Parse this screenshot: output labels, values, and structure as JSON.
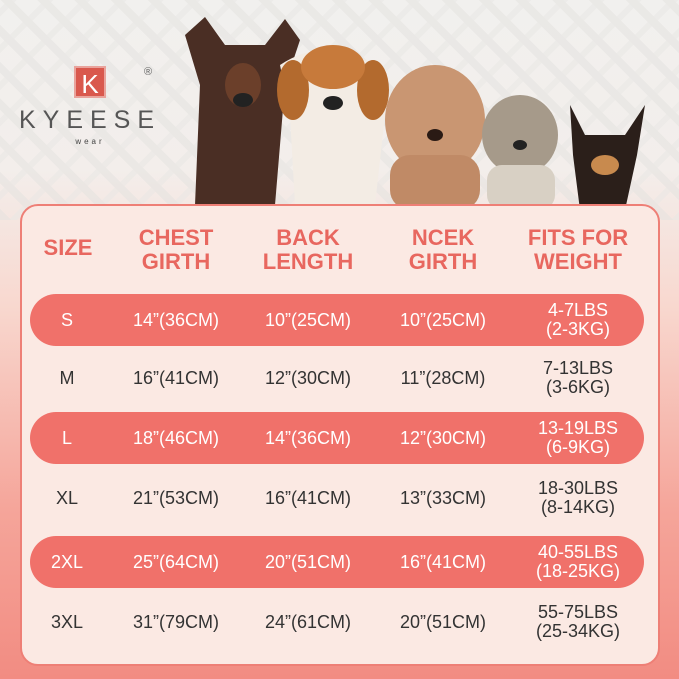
{
  "logo": {
    "mark": "K",
    "brand": "KYEESE",
    "sub": "wear",
    "reg": "®"
  },
  "colors": {
    "accent": "#f0716a",
    "header_text": "#e8675f",
    "card": "#fbe9e3"
  },
  "headers": [
    "SIZE",
    "CHEST GIRTH",
    "BACK LENGTH",
    "NCEK GIRTH",
    "FITS FOR WEIGHT"
  ],
  "rows": [
    {
      "size": "S",
      "chest": "14”(36CM)",
      "back": "10”(25CM)",
      "neck": "10”(25CM)",
      "weight_lbs": "4-7LBS",
      "weight_kg": "(2-3KG)",
      "highlight": true
    },
    {
      "size": "M",
      "chest": "16”(41CM)",
      "back": "12”(30CM)",
      "neck": "11”(28CM)",
      "weight_lbs": "7-13LBS",
      "weight_kg": "(3-6KG)",
      "highlight": false
    },
    {
      "size": "L",
      "chest": "18”(46CM)",
      "back": "14”(36CM)",
      "neck": "12”(30CM)",
      "weight_lbs": "13-19LBS",
      "weight_kg": "(6-9KG)",
      "highlight": true
    },
    {
      "size": "XL",
      "chest": "21”(53CM)",
      "back": "16”(41CM)",
      "neck": "13”(33CM)",
      "weight_lbs": "18-30LBS",
      "weight_kg": "(8-14KG)",
      "highlight": false
    },
    {
      "size": "2XL",
      "chest": "25”(64CM)",
      "back": "20”(51CM)",
      "neck": "16”(41CM)",
      "weight_lbs": "40-55LBS",
      "weight_kg": "(18-25KG)",
      "highlight": true
    },
    {
      "size": "3XL",
      "chest": "31”(79CM)",
      "back": "24”(61CM)",
      "neck": "20”(51CM)",
      "weight_lbs": "55-75LBS",
      "weight_kg": "(25-34KG)",
      "highlight": false
    }
  ]
}
